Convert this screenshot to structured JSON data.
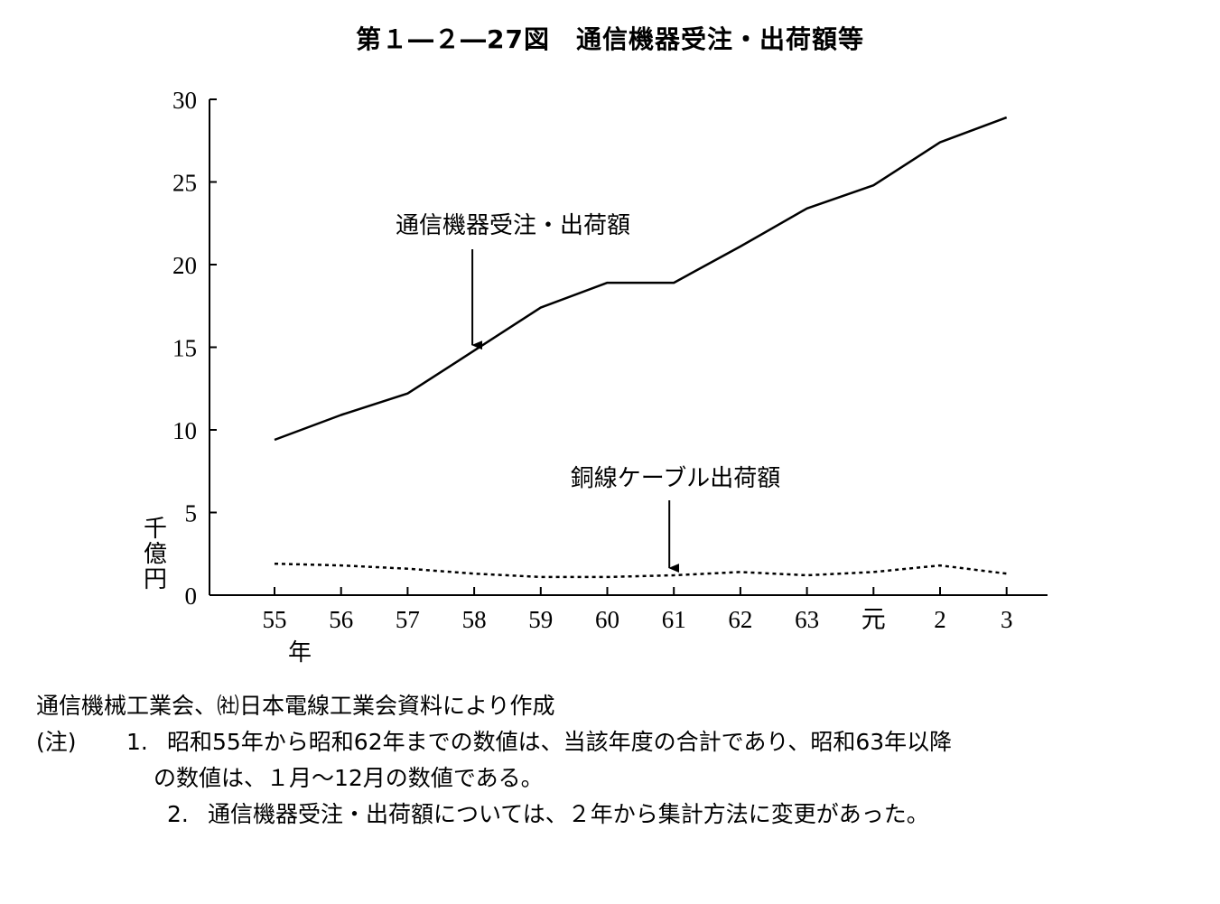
{
  "title": "第１―２―27図　通信機器受注・出荷額等",
  "chart_data": {
    "type": "line",
    "categories": [
      "55",
      "56",
      "57",
      "58",
      "59",
      "60",
      "61",
      "62",
      "63",
      "元",
      "2",
      "3"
    ],
    "x_unit_label": "年",
    "y_unit_label": "千億円",
    "ylim": [
      0,
      30
    ],
    "yticks": [
      0,
      5,
      10,
      15,
      20,
      25,
      30
    ],
    "grid": false,
    "series": [
      {
        "name": "通信機器受注・出荷額",
        "style": "solid",
        "values": [
          9.4,
          10.9,
          12.2,
          14.8,
          17.4,
          18.9,
          18.9,
          21.1,
          23.4,
          24.8,
          27.4,
          28.9
        ]
      },
      {
        "name": "銅線ケーブル出荷額",
        "style": "dotted",
        "values": [
          1.9,
          1.8,
          1.6,
          1.3,
          1.1,
          1.1,
          1.2,
          1.4,
          1.2,
          1.4,
          1.8,
          1.3
        ]
      }
    ],
    "annotations": [
      {
        "text": "通信機器受注・出荷額",
        "series": 0,
        "category_index": 3
      },
      {
        "text": "銅線ケーブル出荷額",
        "series": 1,
        "category_index": 6
      }
    ]
  },
  "source": "通信機械工業会、㈳日本電線工業会資料により作成",
  "notes": {
    "label": "(注)",
    "items": [
      {
        "number": "1.",
        "text": "昭和55年から昭和62年までの数値は、当該年度の合計であり、昭和63年以降",
        "continuation": "の数値は、１月～12月の数値である。"
      },
      {
        "number": "2.",
        "text": "通信機器受注・出荷額については、２年から集計方法に変更があった。"
      }
    ]
  }
}
